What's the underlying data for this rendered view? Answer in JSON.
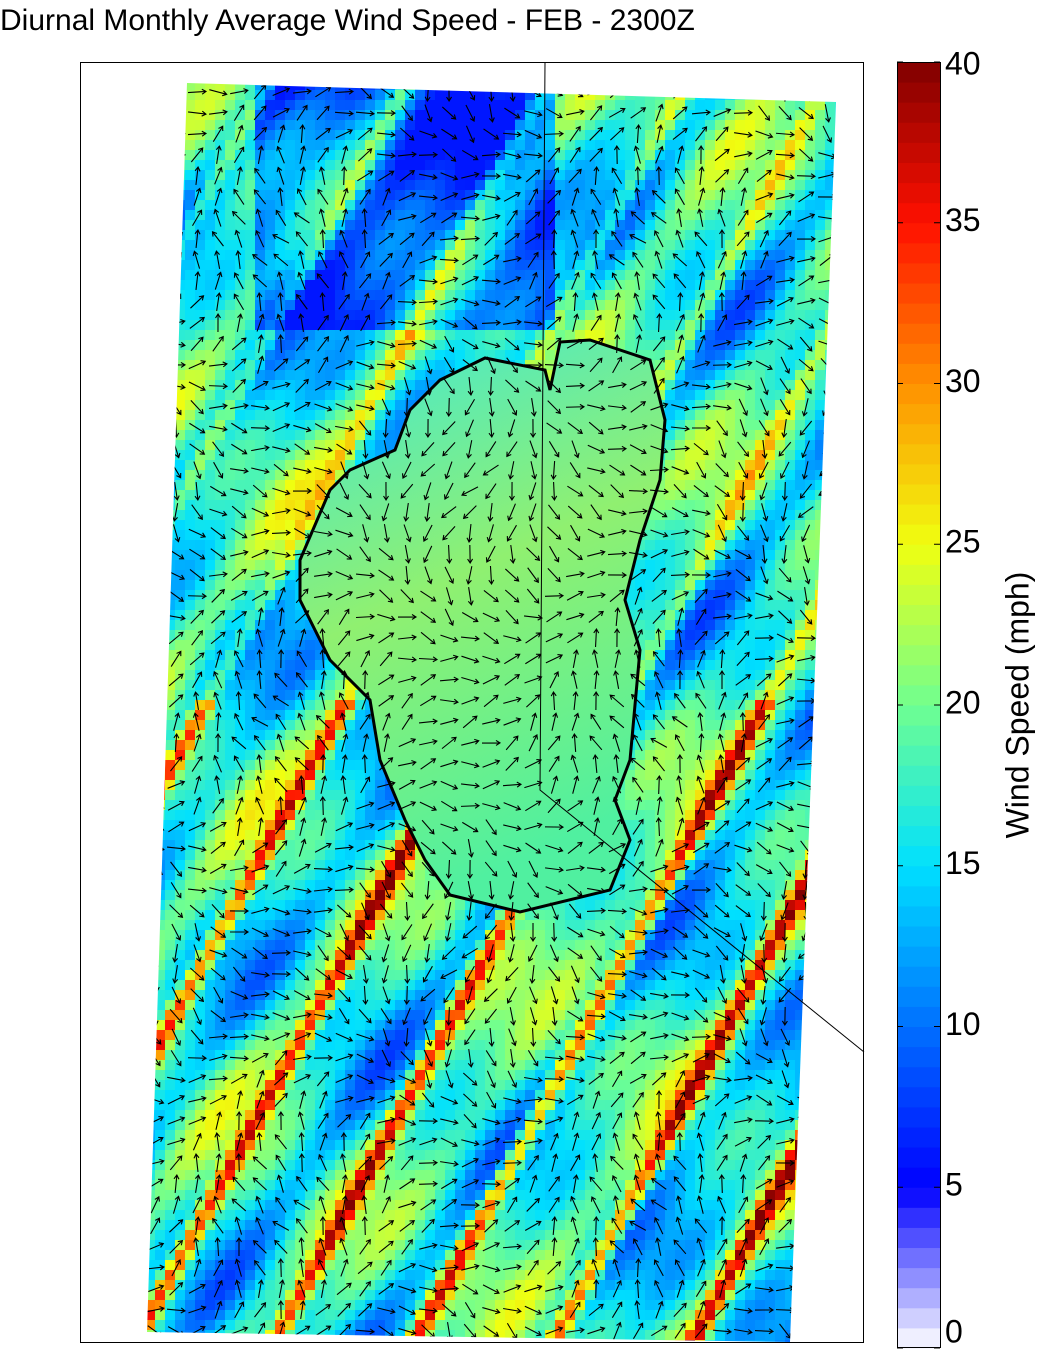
{
  "chart_data": {
    "type": "heatmap",
    "title": "Diurnal Monthly Average Wind Speed - FEB - 2300Z",
    "colorbar_label": "Wind Speed (mph)",
    "clim": [
      0,
      40
    ],
    "cticks": [
      0,
      5,
      10,
      15,
      20,
      25,
      30,
      35,
      40
    ],
    "colormap": [
      "#ffffff",
      "#0000ff",
      "#0070ff",
      "#00e0ff",
      "#70ff90",
      "#f0ff10",
      "#ff9000",
      "#ff1000",
      "#800000"
    ]
  }
}
